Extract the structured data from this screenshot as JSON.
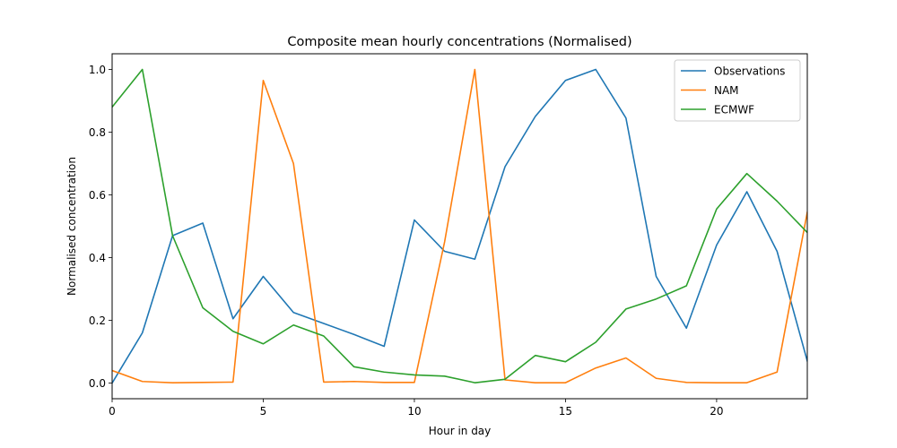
{
  "chart_data": {
    "type": "line",
    "title": "Composite mean hourly concentrations (Normalised)",
    "xlabel": "Hour in day",
    "ylabel": "Normalised concentration",
    "xlim": [
      0,
      23
    ],
    "ylim": [
      -0.05,
      1.05
    ],
    "xticks": [
      0,
      5,
      10,
      15,
      20
    ],
    "yticks": [
      0.0,
      0.2,
      0.4,
      0.6,
      0.8,
      1.0
    ],
    "xtick_labels": [
      "0",
      "5",
      "10",
      "15",
      "20"
    ],
    "ytick_labels": [
      "0.0",
      "0.2",
      "0.4",
      "0.6",
      "0.8",
      "1.0"
    ],
    "grid": false,
    "legend_position": "top-right",
    "x": [
      0,
      1,
      2,
      3,
      4,
      5,
      6,
      7,
      8,
      9,
      10,
      11,
      12,
      13,
      14,
      15,
      16,
      17,
      18,
      19,
      20,
      21,
      22,
      23
    ],
    "series": [
      {
        "name": "Observations",
        "color": "#1f77b4",
        "values": [
          0.0,
          0.16,
          0.47,
          0.51,
          0.205,
          0.34,
          0.225,
          0.19,
          0.155,
          0.117,
          0.52,
          0.42,
          0.395,
          0.69,
          0.85,
          0.965,
          1.0,
          0.845,
          0.34,
          0.175,
          0.44,
          0.61,
          0.42,
          0.07
        ]
      },
      {
        "name": "NAM",
        "color": "#ff7f0e",
        "values": [
          0.04,
          0.005,
          0.001,
          0.002,
          0.003,
          0.965,
          0.7,
          0.003,
          0.005,
          0.002,
          0.002,
          0.45,
          1.0,
          0.01,
          0.001,
          0.001,
          0.048,
          0.08,
          0.015,
          0.002,
          0.001,
          0.001,
          0.035,
          0.545
        ]
      },
      {
        "name": "ECMWF",
        "color": "#2ca02c",
        "values": [
          0.88,
          1.0,
          0.47,
          0.24,
          0.165,
          0.125,
          0.185,
          0.15,
          0.052,
          0.035,
          0.026,
          0.022,
          0.001,
          0.012,
          0.088,
          0.068,
          0.13,
          0.236,
          0.268,
          0.31,
          0.555,
          0.668,
          0.58,
          0.48
        ]
      }
    ]
  }
}
